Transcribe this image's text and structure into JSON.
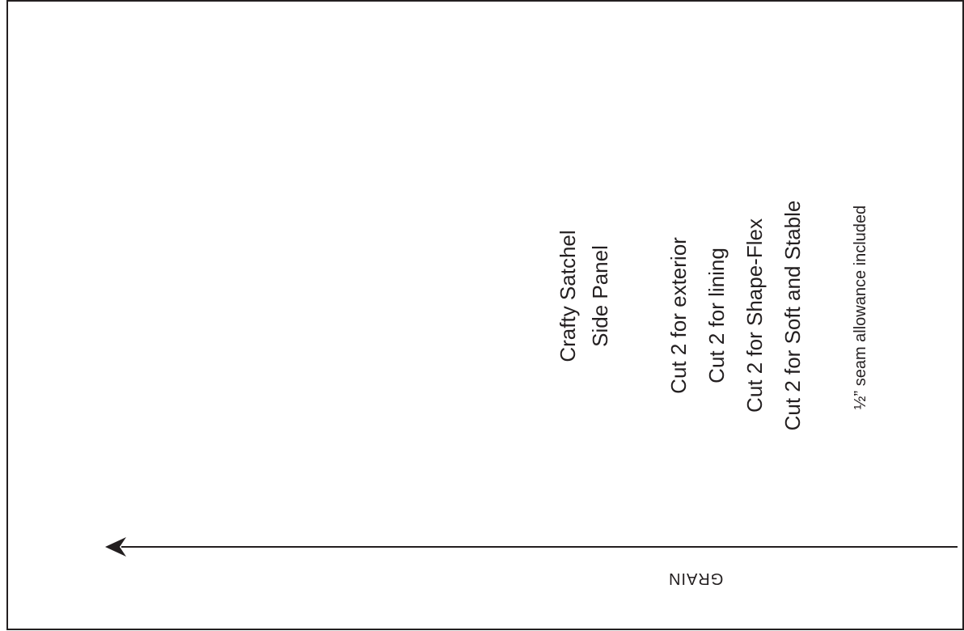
{
  "title_block": {
    "line1": "Crafty Satchel",
    "line2": "Side Panel"
  },
  "cutting_instructions": [
    "Cut 2 for exterior",
    "Cut 2 for lining",
    "Cut 2 for Shape-Flex",
    "Cut 2 for Soft and Stable"
  ],
  "seam_allowance_note": "½” seam allowance included",
  "grain": {
    "label": "GRAIN",
    "arrow_icon": "arrow-left-icon"
  },
  "colors": {
    "ink": "#231f20",
    "paper": "#ffffff"
  }
}
